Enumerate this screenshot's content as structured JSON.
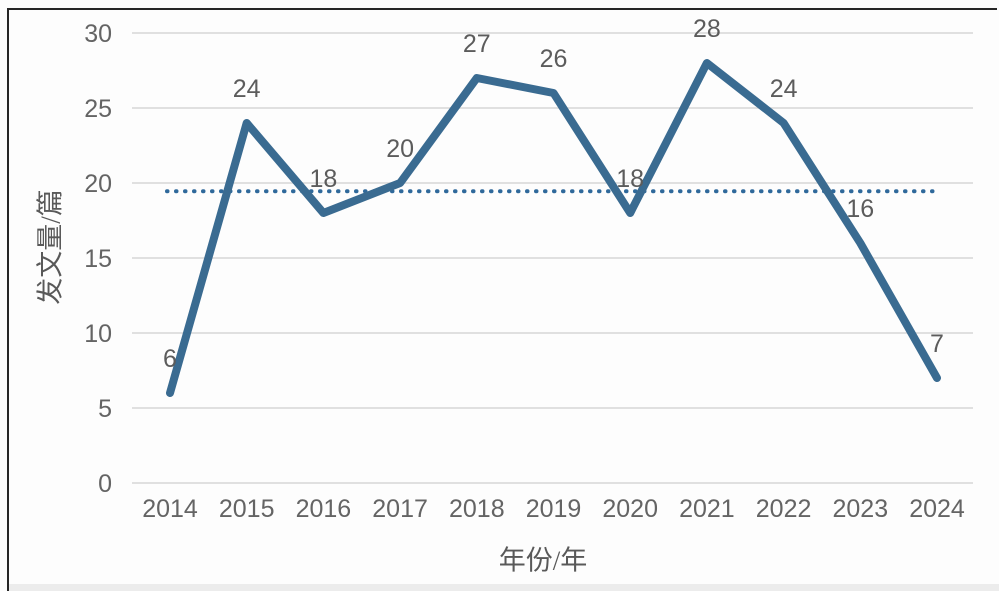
{
  "figure": {
    "background": "#fdfdfd",
    "border_color": "#262626",
    "bottom_strip_color": "#ececec"
  },
  "chart_data": {
    "type": "line",
    "title": "",
    "xlabel": "年份/年",
    "ylabel": "发文量/篇",
    "x": [
      "2014",
      "2015",
      "2016",
      "2017",
      "2018",
      "2019",
      "2020",
      "2021",
      "2022",
      "2023",
      "2024"
    ],
    "values": [
      6,
      24,
      18,
      20,
      27,
      26,
      18,
      28,
      24,
      16,
      7
    ],
    "yticks": [
      0,
      5,
      10,
      15,
      20,
      25,
      30
    ],
    "ylim": [
      0,
      30
    ],
    "grid": "horizontal",
    "legend": "none",
    "reference_line": {
      "style": "dotted",
      "value": 19.45
    },
    "colors": {
      "series_line": "#3a6b91",
      "reference_line": "#2f699b",
      "gridline": "#d6d6d6",
      "tick_text": "#646464",
      "label_text": "#5c5c5c",
      "axis_title_text": "#595959"
    }
  }
}
